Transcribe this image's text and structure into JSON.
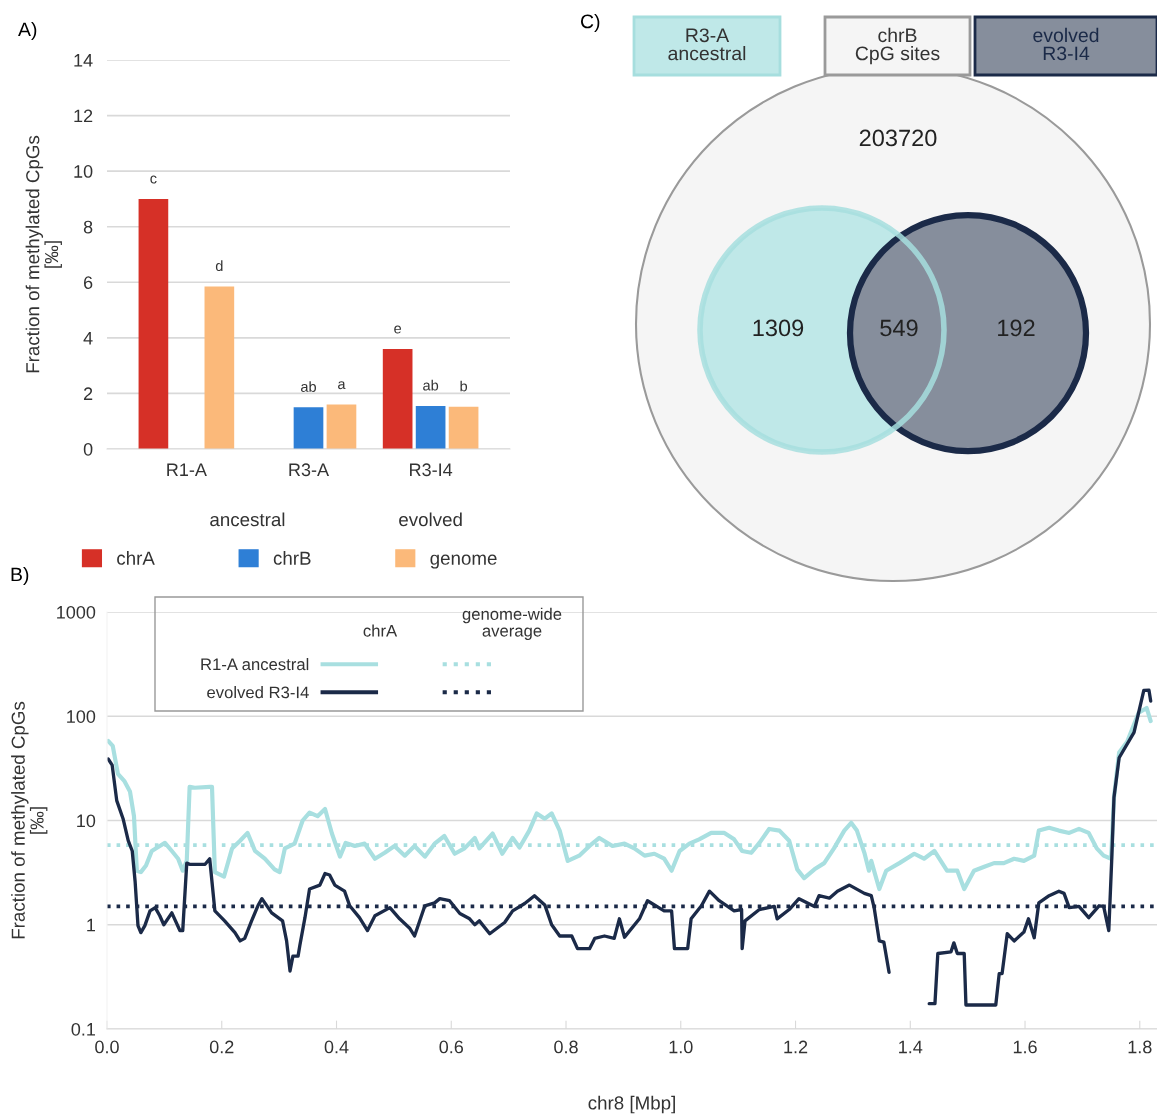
{
  "chart_data": [
    {
      "type": "bar",
      "title": "A)",
      "ylabel": "Fraction of methylated CpGs\n[‰]",
      "categories": [
        "R1-A",
        "R3-A",
        "R3-I4"
      ],
      "series": [
        {
          "name": "chrA",
          "color": "#d63027",
          "values": [
            9.0,
            null,
            3.6
          ],
          "value_labels": [
            "c",
            null,
            "e"
          ]
        },
        {
          "name": "chrB",
          "color": "#2e7fd6",
          "values": [
            null,
            1.5,
            1.55
          ],
          "value_labels": [
            null,
            "ab",
            "ab"
          ]
        },
        {
          "name": "genome",
          "color": "#fbb97a",
          "values": [
            5.85,
            1.6,
            1.52
          ],
          "value_labels": [
            "d",
            "a",
            "b"
          ]
        }
      ],
      "ylim": [
        0,
        14
      ],
      "yticks": [
        0,
        2,
        4,
        6,
        8,
        10,
        12,
        14
      ],
      "grid": "y",
      "legend": "bottom",
      "annotations": [
        "ancestral",
        "evolved"
      ]
    },
    {
      "type": "other",
      "title": "C)",
      "categories": [
        "R3-A\nancestral",
        "chrB\nCpG sites",
        "evolved\nR3-I4"
      ],
      "colors": [
        "#bfe8e8",
        "#f5f5f5",
        "#868e9c"
      ],
      "values": [
        1309,
        203720,
        192
      ],
      "data_labels": true,
      "annotations": [
        "549"
      ]
    },
    {
      "type": "line",
      "title": "B)",
      "xlabel": "chr8 [Mbp]",
      "ylabel": "Fraction of methylated CpGs\n[‰]",
      "series": [
        {
          "name": "R1-A ancestral",
          "color": "#a8dfe0",
          "line_style": "solid",
          "x": [
            0.002,
            0.01,
            0.019,
            0.03,
            0.04,
            0.047,
            0.052,
            0.059,
            0.068,
            0.078,
            0.092,
            0.101,
            0.113,
            0.124,
            0.132,
            0.139,
            0.144,
            0.153,
            0.179,
            0.183,
            0.188,
            0.204,
            0.218,
            0.232,
            0.245,
            0.258,
            0.275,
            0.292,
            0.301,
            0.31,
            0.327,
            0.341,
            0.353,
            0.367,
            0.38,
            0.392,
            0.406,
            0.416,
            0.432,
            0.449,
            0.467,
            0.484,
            0.501,
            0.519,
            0.536,
            0.554,
            0.571,
            0.588,
            0.606,
            0.623,
            0.641,
            0.649,
            0.672,
            0.689,
            0.707,
            0.719,
            0.736,
            0.749,
            0.763,
            0.775,
            0.789,
            0.803,
            0.823,
            0.841,
            0.858,
            0.881,
            0.902,
            0.919,
            0.937,
            0.954,
            0.971,
            0.984,
            0.998,
            1.015,
            1.032,
            1.053,
            1.076,
            1.093,
            1.107,
            1.123,
            1.137,
            1.154,
            1.172,
            1.189,
            1.203,
            1.215,
            1.233,
            1.25,
            1.267,
            1.285,
            1.297,
            1.307,
            1.32,
            1.328,
            1.332,
            1.346,
            1.358,
            1.381,
            1.407,
            1.424,
            1.442,
            1.464,
            1.482,
            1.494,
            1.511,
            1.529,
            1.546,
            1.563,
            1.581,
            1.598,
            1.616,
            1.624,
            1.642,
            1.659,
            1.677,
            1.694,
            1.711,
            1.725,
            1.737,
            1.75,
            1.755,
            1.764,
            1.778,
            1.798,
            1.812,
            1.819
          ],
          "values": [
            58,
            52,
            28,
            24,
            19,
            11,
            3.3,
            3.2,
            3.7,
            5.1,
            5.7,
            6.1,
            5.1,
            4.3,
            3.3,
            4.1,
            21,
            20.6,
            21,
            21,
            3.2,
            2.9,
            5.4,
            6.4,
            7.6,
            5.1,
            4.3,
            3.4,
            3.2,
            5.4,
            6.0,
            10,
            11.9,
            11,
            12.9,
            7.5,
            4.5,
            6.1,
            5.7,
            6.0,
            4.3,
            4.9,
            5.7,
            4.6,
            5.7,
            4.5,
            6.0,
            7.1,
            4.8,
            5.4,
            6.8,
            5.4,
            7.5,
            4.8,
            6.8,
            5.5,
            8.0,
            11.7,
            10.4,
            11.7,
            8.0,
            4.1,
            4.6,
            5.7,
            6.8,
            5.7,
            6.0,
            5.4,
            4.6,
            4.8,
            4.3,
            3.3,
            5.1,
            6.0,
            6.6,
            7.6,
            7.6,
            6.6,
            5.1,
            4.9,
            6.1,
            8.3,
            8.0,
            6.4,
            3.4,
            2.8,
            3.4,
            3.9,
            5.4,
            8.0,
            9.5,
            8.0,
            4.9,
            3.3,
            4.1,
            2.2,
            3.3,
            3.9,
            4.8,
            4.3,
            5.1,
            3.3,
            3.3,
            2.2,
            3.3,
            3.6,
            3.9,
            3.9,
            4.3,
            4.1,
            4.6,
            8.0,
            8.5,
            8.0,
            7.6,
            8.3,
            7.6,
            5.4,
            4.6,
            4.3,
            16.6,
            45,
            57,
            108,
            120,
            90
          ]
        },
        {
          "name": "evolved R3-I4",
          "color": "#1b2a48",
          "line_style": "solid",
          "x": [
            0.002,
            0.009,
            0.017,
            0.028,
            0.037,
            0.044,
            0.049,
            0.054,
            0.059,
            0.066,
            0.075,
            0.084,
            0.092,
            0.099,
            0.113,
            0.127,
            0.132,
            0.139,
            0.144,
            0.171,
            0.179,
            0.188,
            0.205,
            0.223,
            0.232,
            0.24,
            0.252,
            0.263,
            0.27,
            0.287,
            0.306,
            0.313,
            0.319,
            0.324,
            0.333,
            0.336,
            0.345,
            0.353,
            0.371,
            0.38,
            0.388,
            0.397,
            0.414,
            0.423,
            0.44,
            0.454,
            0.467,
            0.493,
            0.51,
            0.528,
            0.536,
            0.554,
            0.571,
            0.58,
            0.597,
            0.615,
            0.632,
            0.641,
            0.649,
            0.667,
            0.693,
            0.707,
            0.728,
            0.745,
            0.763,
            0.775,
            0.789,
            0.81,
            0.82,
            0.841,
            0.85,
            0.867,
            0.884,
            0.893,
            0.902,
            0.928,
            0.942,
            0.971,
            0.984,
            0.989,
            1.012,
            1.018,
            1.036,
            1.05,
            1.067,
            1.093,
            1.106,
            1.107,
            1.112,
            1.137,
            1.163,
            1.168,
            1.189,
            1.206,
            1.233,
            1.241,
            1.259,
            1.273,
            1.294,
            1.32,
            1.332,
            1.337,
            1.346,
            1.354,
            1.363,
            1.4,
            1.433,
            1.443,
            1.448,
            1.471,
            1.476,
            1.482,
            1.494,
            1.497,
            1.549,
            1.555,
            1.56,
            1.569,
            1.581,
            1.598,
            1.606,
            1.616,
            1.624,
            1.642,
            1.659,
            1.668,
            1.677,
            1.694,
            1.711,
            1.729,
            1.737,
            1.746,
            1.751,
            1.755,
            1.764,
            1.79,
            1.807,
            1.816,
            1.819
          ],
          "values": [
            39,
            34,
            15.5,
            10.4,
            6.4,
            5.1,
            2.6,
            0.98,
            0.84,
            0.98,
            1.36,
            1.46,
            1.22,
            1.0,
            1.3,
            0.88,
            0.88,
            3.9,
            3.8,
            3.8,
            4.3,
            1.36,
            1.09,
            0.84,
            0.7,
            0.74,
            1.09,
            1.52,
            1.78,
            1.3,
            1.09,
            0.7,
            0.36,
            0.5,
            0.5,
            0.63,
            1.17,
            2.2,
            2.4,
            3.1,
            3.0,
            2.4,
            2.1,
            1.52,
            1.17,
            0.88,
            1.22,
            1.46,
            1.14,
            0.92,
            0.78,
            1.52,
            1.62,
            1.78,
            1.7,
            1.28,
            1.14,
            1.0,
            1.09,
            0.82,
            1.05,
            1.36,
            1.6,
            1.9,
            1.55,
            1.0,
            0.78,
            0.78,
            0.59,
            0.59,
            0.74,
            0.78,
            0.74,
            1.14,
            0.76,
            1.14,
            1.7,
            1.36,
            1.36,
            0.59,
            0.59,
            1.14,
            1.52,
            2.1,
            1.7,
            1.36,
            1.4,
            0.59,
            1.09,
            1.4,
            1.5,
            1.14,
            1.4,
            1.78,
            1.5,
            1.9,
            1.8,
            2.1,
            2.4,
            2.0,
            1.9,
            1.46,
            0.7,
            0.68,
            0.35,
            null,
            0.175,
            0.175,
            0.53,
            0.55,
            0.67,
            0.53,
            0.53,
            0.17,
            0.17,
            0.34,
            0.34,
            0.82,
            0.7,
            0.85,
            1.14,
            0.75,
            1.62,
            1.9,
            2.1,
            2.0,
            1.46,
            1.5,
            1.17,
            1.52,
            1.5,
            0.88,
            4.1,
            16.6,
            40,
            70,
            177,
            178,
            140
          ]
        }
      ],
      "xlim": [
        0,
        1.83
      ],
      "xticks": [
        {
          "value": 0,
          "label": "0.0"
        },
        0.2,
        0.4,
        0.6,
        0.8,
        {
          "value": 1,
          "label": "1.0"
        },
        1.2,
        1.4,
        1.6,
        1.8
      ],
      "ylim": [
        0.1,
        1000
      ],
      "yticks": [
        0.1,
        1,
        10,
        100,
        1000
      ],
      "log": "y",
      "grid": "y",
      "legend": "top left",
      "ref_lines": [
        {
          "axis": "y",
          "value": 5.8,
          "label": null,
          "color": "#a8dfe0",
          "line_style": "dotted"
        },
        {
          "axis": "y",
          "value": 1.5,
          "label": null,
          "color": "#1b2a48",
          "line_style": "dotted"
        }
      ],
      "annotations": [
        "chrA",
        "genome-wide\naverage"
      ]
    }
  ]
}
